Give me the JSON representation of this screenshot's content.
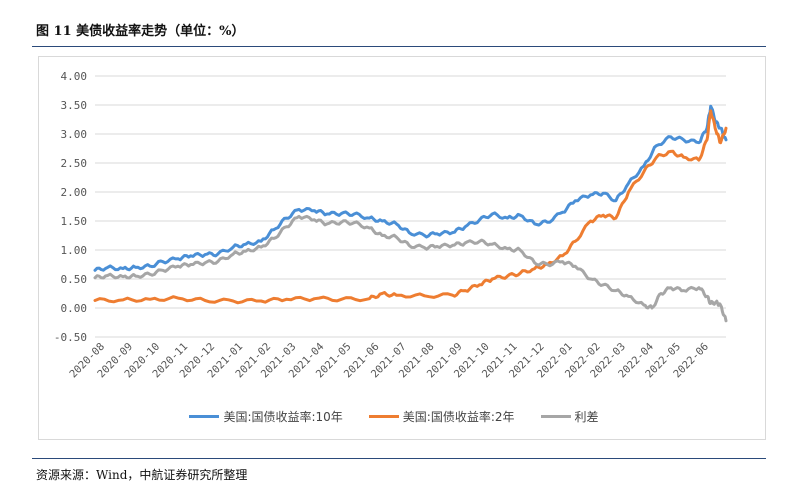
{
  "figure": {
    "title": "图 11 美债收益率走势（单位：%）",
    "source": "资源来源：Wind，中航证券研究所整理"
  },
  "chart_data": {
    "type": "line",
    "title": "",
    "xlabel": "",
    "ylabel": "",
    "ylim": [
      -0.5,
      4.0
    ],
    "yticks": [
      "4.00",
      "3.50",
      "3.00",
      "2.50",
      "2.00",
      "1.50",
      "1.00",
      "0.50",
      "0.00",
      "-0.50"
    ],
    "ytick_values": [
      4.0,
      3.5,
      3.0,
      2.5,
      2.0,
      1.5,
      1.0,
      0.5,
      0.0,
      -0.5
    ],
    "x_categories": [
      "2020-08",
      "2020-09",
      "2020-10",
      "2020-11",
      "2020-12",
      "2021-01",
      "2021-02",
      "2021-03",
      "2021-04",
      "2021-05",
      "2021-06",
      "2021-07",
      "2021-08",
      "2021-09",
      "2021-10",
      "2021-11",
      "2021-12",
      "2022-01",
      "2022-02",
      "2022-03",
      "2022-04",
      "2022-05",
      "2022-06"
    ],
    "x_end": "2022-07",
    "grid": "horizontal",
    "legend_position": "bottom",
    "series": [
      {
        "name": "美国:国债收益率:10年",
        "color": "#4a8fd6",
        "points": [
          [
            "2020-08",
            0.65
          ],
          [
            "2020-08-15",
            0.7
          ],
          [
            "2020-09",
            0.68
          ],
          [
            "2020-09-15",
            0.7
          ],
          [
            "2020-10",
            0.72
          ],
          [
            "2020-10-15",
            0.8
          ],
          [
            "2020-11",
            0.85
          ],
          [
            "2020-11-15",
            0.9
          ],
          [
            "2020-12",
            0.92
          ],
          [
            "2020-12-15",
            0.93
          ],
          [
            "2021-01",
            1.05
          ],
          [
            "2021-01-15",
            1.1
          ],
          [
            "2021-02",
            1.15
          ],
          [
            "2021-02-15",
            1.35
          ],
          [
            "2021-03",
            1.55
          ],
          [
            "2021-03-15",
            1.7
          ],
          [
            "2021-04",
            1.68
          ],
          [
            "2021-04-15",
            1.62
          ],
          [
            "2021-05",
            1.63
          ],
          [
            "2021-05-15",
            1.62
          ],
          [
            "2021-06",
            1.55
          ],
          [
            "2021-06-15",
            1.5
          ],
          [
            "2021-07",
            1.45
          ],
          [
            "2021-07-15",
            1.3
          ],
          [
            "2021-08",
            1.25
          ],
          [
            "2021-08-15",
            1.28
          ],
          [
            "2021-09",
            1.3
          ],
          [
            "2021-09-15",
            1.4
          ],
          [
            "2021-10",
            1.52
          ],
          [
            "2021-10-15",
            1.62
          ],
          [
            "2021-11",
            1.55
          ],
          [
            "2021-11-15",
            1.6
          ],
          [
            "2021-12",
            1.45
          ],
          [
            "2021-12-15",
            1.48
          ],
          [
            "2022-01",
            1.65
          ],
          [
            "2022-01-15",
            1.85
          ],
          [
            "2022-02",
            1.95
          ],
          [
            "2022-02-15",
            1.98
          ],
          [
            "2022-03",
            1.85
          ],
          [
            "2022-03-15",
            2.15
          ],
          [
            "2022-04",
            2.45
          ],
          [
            "2022-04-15",
            2.8
          ],
          [
            "2022-05",
            2.95
          ],
          [
            "2022-05-15",
            2.9
          ],
          [
            "2022-06",
            2.85
          ],
          [
            "2022-06-10",
            3.1
          ],
          [
            "2022-06-14",
            3.48
          ],
          [
            "2022-06-20",
            3.2
          ],
          [
            "2022-06-25",
            3.1
          ],
          [
            "2022-07",
            2.9
          ]
        ]
      },
      {
        "name": "美国:国债收益率:2年",
        "color": "#ee7d31",
        "points": [
          [
            "2020-08",
            0.13
          ],
          [
            "2020-09",
            0.14
          ],
          [
            "2020-10",
            0.15
          ],
          [
            "2020-11",
            0.17
          ],
          [
            "2020-12",
            0.13
          ],
          [
            "2021-01",
            0.12
          ],
          [
            "2021-02",
            0.12
          ],
          [
            "2021-03",
            0.15
          ],
          [
            "2021-04",
            0.16
          ],
          [
            "2021-05",
            0.15
          ],
          [
            "2021-06",
            0.16
          ],
          [
            "2021-06-15",
            0.25
          ],
          [
            "2021-07",
            0.22
          ],
          [
            "2021-08",
            0.21
          ],
          [
            "2021-09",
            0.22
          ],
          [
            "2021-09-15",
            0.3
          ],
          [
            "2021-10",
            0.4
          ],
          [
            "2021-10-15",
            0.5
          ],
          [
            "2021-11",
            0.55
          ],
          [
            "2021-11-15",
            0.6
          ],
          [
            "2021-12",
            0.68
          ],
          [
            "2021-12-15",
            0.75
          ],
          [
            "2022-01",
            0.9
          ],
          [
            "2022-01-15",
            1.15
          ],
          [
            "2022-02",
            1.5
          ],
          [
            "2022-02-15",
            1.6
          ],
          [
            "2022-03",
            1.55
          ],
          [
            "2022-03-15",
            2.0
          ],
          [
            "2022-04",
            2.35
          ],
          [
            "2022-04-15",
            2.6
          ],
          [
            "2022-05",
            2.7
          ],
          [
            "2022-05-15",
            2.6
          ],
          [
            "2022-06",
            2.55
          ],
          [
            "2022-06-10",
            2.9
          ],
          [
            "2022-06-14",
            3.4
          ],
          [
            "2022-06-20",
            3.05
          ],
          [
            "2022-06-25",
            2.85
          ],
          [
            "2022-07",
            3.1
          ]
        ]
      },
      {
        "name": "利差",
        "color": "#a6a6a6",
        "points": [
          [
            "2020-08",
            0.52
          ],
          [
            "2020-08-15",
            0.56
          ],
          [
            "2020-09",
            0.54
          ],
          [
            "2020-09-15",
            0.55
          ],
          [
            "2020-10",
            0.58
          ],
          [
            "2020-10-15",
            0.65
          ],
          [
            "2020-11",
            0.72
          ],
          [
            "2020-11-15",
            0.75
          ],
          [
            "2020-12",
            0.78
          ],
          [
            "2020-12-15",
            0.8
          ],
          [
            "2021-01",
            0.93
          ],
          [
            "2021-01-15",
            0.98
          ],
          [
            "2021-02",
            1.05
          ],
          [
            "2021-02-15",
            1.2
          ],
          [
            "2021-03",
            1.4
          ],
          [
            "2021-03-15",
            1.58
          ],
          [
            "2021-04",
            1.52
          ],
          [
            "2021-04-15",
            1.45
          ],
          [
            "2021-05",
            1.48
          ],
          [
            "2021-05-15",
            1.47
          ],
          [
            "2021-06",
            1.38
          ],
          [
            "2021-06-15",
            1.25
          ],
          [
            "2021-07",
            1.22
          ],
          [
            "2021-07-15",
            1.08
          ],
          [
            "2021-08",
            1.04
          ],
          [
            "2021-08-15",
            1.06
          ],
          [
            "2021-09",
            1.08
          ],
          [
            "2021-09-15",
            1.12
          ],
          [
            "2021-10",
            1.15
          ],
          [
            "2021-10-15",
            1.1
          ],
          [
            "2021-11",
            1.02
          ],
          [
            "2021-11-15",
            1.0
          ],
          [
            "2021-12",
            0.78
          ],
          [
            "2021-12-15",
            0.75
          ],
          [
            "2022-01",
            0.8
          ],
          [
            "2022-01-15",
            0.72
          ],
          [
            "2022-02",
            0.5
          ],
          [
            "2022-02-15",
            0.4
          ],
          [
            "2022-03",
            0.3
          ],
          [
            "2022-03-15",
            0.2
          ],
          [
            "2022-04",
            0.05
          ],
          [
            "2022-04-10",
            0.0
          ],
          [
            "2022-04-20",
            0.25
          ],
          [
            "2022-05",
            0.35
          ],
          [
            "2022-05-15",
            0.3
          ],
          [
            "2022-06",
            0.35
          ],
          [
            "2022-06-10",
            0.2
          ],
          [
            "2022-06-14",
            0.08
          ],
          [
            "2022-06-20",
            0.1
          ],
          [
            "2022-06-25",
            0.05
          ],
          [
            "2022-07",
            -0.22
          ]
        ]
      }
    ]
  }
}
